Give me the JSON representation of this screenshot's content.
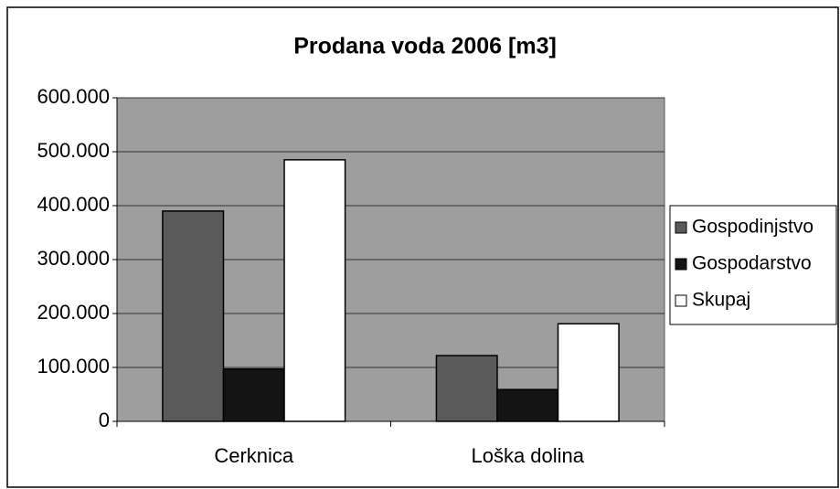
{
  "chart_data": {
    "type": "bar",
    "title": "Prodana voda 2006 [m3]",
    "categories": [
      "Cerknica",
      "Loška dolina"
    ],
    "series": [
      {
        "name": "Gospodinjstvo",
        "color": "#5a5a5a",
        "values": [
          390000,
          122000
        ]
      },
      {
        "name": "Gospodarstvo",
        "color": "#141414",
        "values": [
          97000,
          59000
        ]
      },
      {
        "name": "Skupaj",
        "color": "#ffffff",
        "values": [
          485000,
          181000
        ]
      }
    ],
    "ylim": [
      0,
      600000
    ],
    "yticks": [
      0,
      {
        "value": 100000,
        "label": "100.000"
      },
      {
        "value": 200000,
        "label": "200.000"
      },
      {
        "value": 300000,
        "label": "300.000"
      },
      {
        "value": 400000,
        "label": "400.000"
      },
      {
        "value": 500000,
        "label": "500.000"
      },
      {
        "value": 600000,
        "label": "600.000"
      }
    ],
    "grid": true,
    "legend": "right"
  }
}
